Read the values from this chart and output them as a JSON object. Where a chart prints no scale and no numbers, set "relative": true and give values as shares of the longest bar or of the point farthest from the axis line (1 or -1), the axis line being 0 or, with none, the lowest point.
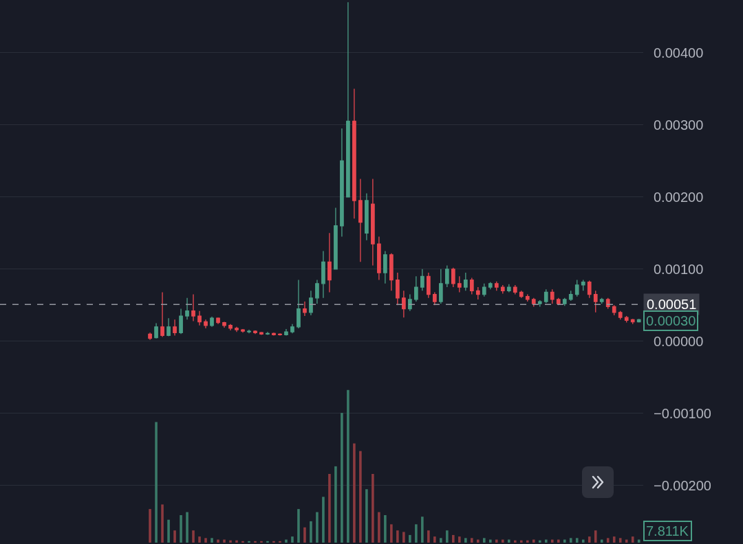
{
  "chart_data": [
    {
      "type": "candlestick",
      "categories": [
        null,
        null,
        null,
        null,
        null,
        null,
        null,
        null,
        null,
        null,
        null,
        null,
        null,
        null,
        null,
        null,
        null,
        null,
        null,
        null,
        null,
        null,
        null,
        null,
        null,
        null,
        null,
        null,
        null,
        null,
        null,
        null,
        null,
        null,
        null,
        null,
        null,
        null,
        null,
        null,
        null,
        null,
        null,
        null,
        null,
        null,
        null,
        null,
        null,
        null,
        null,
        null,
        null,
        null,
        null,
        null,
        null,
        null,
        null,
        null,
        null,
        null,
        null,
        null,
        null,
        null,
        null,
        null,
        null,
        null,
        null,
        null,
        null,
        null,
        null,
        null,
        null,
        null,
        null,
        null
      ],
      "ylim": [
        -0.00281,
        0.00473
      ],
      "yticks": [
        {
          "value": -0.002,
          "label": "−0.00200"
        },
        {
          "value": -0.001,
          "label": "−0.00100"
        },
        {
          "value": 0,
          "label": "0.00000"
        },
        {
          "value": 0.001,
          "label": "0.00100"
        },
        {
          "value": 0.002,
          "label": "0.00200"
        },
        {
          "value": 0.003,
          "label": "0.00300"
        },
        {
          "value": 0.004,
          "label": "0.00400"
        }
      ],
      "grid": "y",
      "tick_labels": "y",
      "series": [
        {
          "colors": [
            "#e8474f",
            "#4a9e86",
            "#e8474f",
            "#4a9e86",
            "#e8474f",
            "#4a9e86",
            "#4a9e86",
            "#e8474f",
            "#e8474f",
            "#e8474f",
            "#4a9e86",
            "#e8474f",
            "#e8474f",
            "#e8474f",
            "#e8474f",
            "#e8474f",
            "#4a9e86",
            "#e8474f",
            "#e8474f",
            "#4a9e86",
            "#e8474f",
            "#e8474f",
            "#4a9e86",
            "#4a9e86",
            "#4a9e86",
            "#e8474f",
            "#4a9e86",
            "#4a9e86",
            "#4a9e86",
            "#e8474f",
            "#4a9e86",
            "#4a9e86",
            "#4a9e86",
            "#e8474f",
            "#e8474f",
            "#4a9e86",
            "#e8474f",
            "#e8474f",
            "#4a9e86",
            "#e8474f",
            "#e8474f",
            "#e8474f",
            "#4a9e86",
            "#4a9e86",
            "#4a9e86",
            "#e8474f",
            "#e8474f",
            "#4a9e86",
            "#4a9e86",
            "#e8474f",
            "#e8474f",
            "#4a9e86",
            "#e8474f",
            "#e8474f",
            "#4a9e86",
            "#4a9e86",
            "#e8474f",
            "#e8474f",
            "#4a9e86",
            "#e8474f",
            "#e8474f",
            "#e8474f",
            "#e8474f",
            "#4a9e86",
            "#4a9e86",
            "#e8474f",
            "#e8474f",
            "#4a9e86",
            "#4a9e86",
            "#4a9e86",
            "#4a9e86",
            "#e8474f",
            "#e8474f",
            "#4a9e86",
            "#e8474f",
            "#e8474f",
            "#e8474f",
            "#e8474f",
            "#e8474f",
            "#4a9e86"
          ],
          "ohlc": [
            [
              0.0001,
              0.00012,
              2e-05,
              4e-05
            ],
            [
              5e-05,
              0.00025,
              4e-05,
              0.0002
            ],
            [
              0.0002,
              0.00068,
              6e-05,
              8e-05
            ],
            [
              8e-05,
              0.00032,
              7e-05,
              0.0002
            ],
            [
              0.0002,
              0.0003,
              8e-05,
              0.00012
            ],
            [
              0.00012,
              0.00045,
              0.0001,
              0.00035
            ],
            [
              0.00035,
              0.0006,
              0.0003,
              0.00042
            ],
            [
              0.00042,
              0.00065,
              0.00028,
              0.00035
            ],
            [
              0.00035,
              0.00042,
              0.00022,
              0.00027
            ],
            [
              0.00027,
              0.0003,
              0.00018,
              0.00022
            ],
            [
              0.00022,
              0.00034,
              0.0002,
              0.00032
            ],
            [
              0.00032,
              0.00033,
              0.00024,
              0.00026
            ],
            [
              0.00026,
              0.00027,
              0.00019,
              0.00022
            ],
            [
              0.00022,
              0.00024,
              0.00015,
              0.00018
            ],
            [
              0.00018,
              0.0002,
              0.00013,
              0.00016
            ],
            [
              0.00016,
              0.00017,
              0.00012,
              0.00014
            ],
            [
              0.00013,
              0.00016,
              0.00011,
              0.00014
            ],
            [
              0.00014,
              0.00015,
              0.0001,
              0.00012
            ],
            [
              0.00012,
              0.00013,
              9e-05,
              0.0001
            ],
            [
              0.0001,
              0.00013,
              9e-05,
              0.00011
            ],
            [
              0.00011,
              0.00012,
              8e-05,
              9e-05
            ],
            [
              0.0001,
              0.00011,
              8e-05,
              9e-05
            ],
            [
              9e-05,
              0.00017,
              8e-05,
              0.00013
            ],
            [
              0.00013,
              0.00024,
              0.00011,
              0.0002
            ],
            [
              0.0002,
              0.00085,
              0.00018,
              0.00045
            ],
            [
              0.00045,
              0.00055,
              0.00035,
              0.0004
            ],
            [
              0.0004,
              0.0007,
              0.00036,
              0.0006
            ],
            [
              0.0006,
              0.00085,
              0.00052,
              0.0008
            ],
            [
              0.0008,
              0.00125,
              0.0006,
              0.0011
            ],
            [
              0.0011,
              0.0015,
              0.00068,
              0.00085
            ],
            [
              0.001,
              0.00185,
              0.001,
              0.0016
            ],
            [
              0.0016,
              0.00295,
              0.00145,
              0.0025
            ],
            [
              0.002,
              0.0047,
              0.002,
              0.00305
            ],
            [
              0.00305,
              0.0035,
              0.0017,
              0.00195
            ],
            [
              0.00195,
              0.00225,
              0.0011,
              0.00165
            ],
            [
              0.0015,
              0.00205,
              0.0014,
              0.00195
            ],
            [
              0.0019,
              0.00225,
              0.00105,
              0.00135
            ],
            [
              0.00135,
              0.00145,
              0.00085,
              0.00095
            ],
            [
              0.00095,
              0.00125,
              0.0008,
              0.0012
            ],
            [
              0.0012,
              0.00122,
              0.0007,
              0.00085
            ],
            [
              0.00085,
              0.00095,
              0.0005,
              0.0006
            ],
            [
              0.0006,
              0.0007,
              0.00033,
              0.00045
            ],
            [
              0.00045,
              0.00065,
              0.00042,
              0.00058
            ],
            [
              0.00058,
              0.0009,
              0.00055,
              0.00075
            ],
            [
              0.00075,
              0.001,
              0.0007,
              0.0009
            ],
            [
              0.0009,
              0.00095,
              0.0006,
              0.00065
            ],
            [
              0.00065,
              0.00068,
              0.0005,
              0.00055
            ],
            [
              0.00055,
              0.001,
              0.00052,
              0.0008
            ],
            [
              0.0008,
              0.00105,
              0.00075,
              0.001
            ],
            [
              0.001,
              0.00102,
              0.00075,
              0.0008
            ],
            [
              0.0008,
              0.0009,
              0.00068,
              0.00075
            ],
            [
              0.00075,
              0.00095,
              0.0007,
              0.00085
            ],
            [
              0.00085,
              0.00088,
              0.00065,
              0.0007
            ],
            [
              0.0007,
              0.00075,
              0.00058,
              0.00065
            ],
            [
              0.00065,
              0.0008,
              0.00062,
              0.00075
            ],
            [
              0.00075,
              0.00082,
              0.00072,
              0.0008
            ],
            [
              0.0008,
              0.00083,
              0.0007,
              0.00075
            ],
            [
              0.00075,
              0.00078,
              0.00066,
              0.0007
            ],
            [
              0.0007,
              0.00079,
              0.00068,
              0.00075
            ],
            [
              0.00075,
              0.00078,
              0.00065,
              0.00068
            ],
            [
              0.00068,
              0.0007,
              0.0006,
              0.00062
            ],
            [
              0.00062,
              0.00065,
              0.00055,
              0.00058
            ],
            [
              0.00058,
              0.0006,
              0.00048,
              0.00052
            ],
            [
              0.00052,
              0.00057,
              0.00048,
              0.00055
            ],
            [
              0.00055,
              0.00072,
              0.00053,
              0.00068
            ],
            [
              0.00068,
              0.00072,
              0.00052,
              0.00058
            ],
            [
              0.00058,
              0.0006,
              0.0005,
              0.00052
            ],
            [
              0.00052,
              0.0006,
              0.00049,
              0.00058
            ],
            [
              0.00058,
              0.0007,
              0.00056,
              0.00065
            ],
            [
              0.00065,
              0.00085,
              0.00062,
              0.00078
            ],
            [
              0.00078,
              0.00085,
              0.0007,
              0.00082
            ],
            [
              0.00082,
              0.00084,
              0.0006,
              0.00065
            ],
            [
              0.00065,
              0.0007,
              0.0004,
              0.00055
            ],
            [
              0.00055,
              0.0006,
              0.00052,
              0.00058
            ],
            [
              0.00058,
              0.0006,
              0.00045,
              0.00048
            ],
            [
              0.00048,
              0.0005,
              0.00036,
              0.0004
            ],
            [
              0.0004,
              0.00042,
              0.0003,
              0.00033
            ],
            [
              0.00033,
              0.00035,
              0.00026,
              0.00029
            ],
            [
              0.0003,
              0.00031,
              0.00024,
              0.00027
            ],
            [
              0.00027,
              0.00031,
              0.00026,
              0.0003
            ]
          ]
        }
      ],
      "ref_lines": [
        {
          "axis": "y",
          "value": 0.00051,
          "label": "0.00051",
          "line_style": "dashed",
          "color": "#9598a1"
        }
      ],
      "annotations": [
        "0.00030"
      ]
    },
    {
      "type": "bar",
      "relative": true,
      "categories": [
        null,
        null,
        null,
        null,
        null,
        null,
        null,
        null,
        null,
        null,
        null,
        null,
        null,
        null,
        null,
        null,
        null,
        null,
        null,
        null,
        null,
        null,
        null,
        null,
        null,
        null,
        null,
        null,
        null,
        null,
        null,
        null,
        null,
        null,
        null,
        null,
        null,
        null,
        null,
        null,
        null,
        null,
        null,
        null,
        null,
        null,
        null,
        null,
        null,
        null,
        null,
        null,
        null,
        null,
        null,
        null,
        null,
        null,
        null,
        null,
        null,
        null,
        null,
        null,
        null,
        null,
        null,
        null,
        null,
        null,
        null,
        null,
        null,
        null,
        null,
        null,
        null,
        null,
        null,
        null
      ],
      "series": [
        {
          "values": [
            0.22,
            0.79,
            0.25,
            0.15,
            0.08,
            0.18,
            0.2,
            0.08,
            0.04,
            0.03,
            0.03,
            0.02,
            0.02,
            0.015,
            0.015,
            0.01,
            0.01,
            0.01,
            0.01,
            0.01,
            0.01,
            0.01,
            0.02,
            0.04,
            0.22,
            0.1,
            0.14,
            0.2,
            0.3,
            0.45,
            0.5,
            0.85,
            1,
            0.65,
            0.6,
            0.35,
            0.45,
            0.2,
            0.18,
            0.12,
            0.08,
            0.07,
            0.05,
            0.12,
            0.17,
            0.08,
            0.04,
            0.03,
            0.08,
            0.05,
            0.04,
            0.03,
            0.03,
            0.02,
            0.03,
            0.02,
            0.02,
            0.02,
            0.02,
            0.015,
            0.015,
            0.015,
            0.02,
            0.015,
            0.02,
            0.02,
            0.02,
            0.02,
            0.03,
            0.03,
            0.02,
            0.04,
            0.08,
            0.02,
            0.03,
            0.04,
            0.03,
            0.02,
            0.04,
            0.02
          ],
          "colors": [
            "#8c3a3f",
            "#3a7a68",
            "#8c3a3f",
            "#3a7a68",
            "#8c3a3f",
            "#3a7a68",
            "#3a7a68",
            "#8c3a3f",
            "#8c3a3f",
            "#8c3a3f",
            "#3a7a68",
            "#8c3a3f",
            "#8c3a3f",
            "#8c3a3f",
            "#8c3a3f",
            "#8c3a3f",
            "#3a7a68",
            "#8c3a3f",
            "#8c3a3f",
            "#3a7a68",
            "#8c3a3f",
            "#8c3a3f",
            "#3a7a68",
            "#3a7a68",
            "#3a7a68",
            "#8c3a3f",
            "#3a7a68",
            "#3a7a68",
            "#3a7a68",
            "#8c3a3f",
            "#3a7a68",
            "#3a7a68",
            "#3a7a68",
            "#8c3a3f",
            "#8c3a3f",
            "#3a7a68",
            "#8c3a3f",
            "#8c3a3f",
            "#3a7a68",
            "#8c3a3f",
            "#8c3a3f",
            "#8c3a3f",
            "#3a7a68",
            "#3a7a68",
            "#3a7a68",
            "#8c3a3f",
            "#8c3a3f",
            "#3a7a68",
            "#3a7a68",
            "#8c3a3f",
            "#8c3a3f",
            "#3a7a68",
            "#8c3a3f",
            "#8c3a3f",
            "#3a7a68",
            "#3a7a68",
            "#8c3a3f",
            "#8c3a3f",
            "#3a7a68",
            "#8c3a3f",
            "#8c3a3f",
            "#8c3a3f",
            "#8c3a3f",
            "#3a7a68",
            "#3a7a68",
            "#8c3a3f",
            "#8c3a3f",
            "#3a7a68",
            "#3a7a68",
            "#3a7a68",
            "#3a7a68",
            "#8c3a3f",
            "#8c3a3f",
            "#3a7a68",
            "#8c3a3f",
            "#8c3a3f",
            "#8c3a3f",
            "#8c3a3f",
            "#8c3a3f",
            "#3a7a68"
          ]
        }
      ],
      "annotations": [
        "7.811K"
      ]
    }
  ]
}
